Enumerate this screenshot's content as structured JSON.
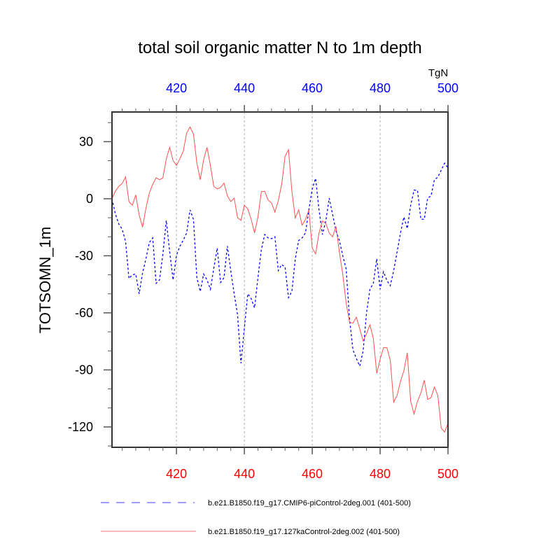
{
  "chart_data": {
    "type": "line",
    "title": "total soil organic matter N to 1m depth",
    "units_label": "TgN",
    "xlabel": "",
    "ylabel": "TOTSOMN_1m",
    "xlim": [
      401,
      500
    ],
    "ylim": [
      -130.7,
      45.6
    ],
    "x_ticks_major": [
      420,
      440,
      460,
      480,
      500
    ],
    "x_tick_labels_top": [
      "420",
      "440",
      "460",
      "480",
      "500"
    ],
    "x_tick_labels_bottom": [
      "420",
      "440",
      "460",
      "480",
      "500"
    ],
    "x_ticks_minor_step": 4,
    "y_ticks_major": [
      30,
      0,
      -30,
      -60,
      -90,
      -120
    ],
    "y_tick_labels": [
      "30",
      "0",
      "-30",
      "-60",
      "-90",
      "-120"
    ],
    "y_ticks_minor_step": 10,
    "vertical_gridlines": [
      420,
      440,
      460,
      480
    ],
    "grid": "vertical dashed at major x ticks",
    "legend_placement": "bottom",
    "x_start": 401,
    "x_step": 1,
    "series": [
      {
        "name": "b.e21.B1850.f19_g17.CMIP6-piControl-2deg.001 (401-500)",
        "color": "#0000ff",
        "style": "dashed",
        "values": [
          0,
          -8,
          -13.3,
          -16,
          -22.5,
          -42,
          -40,
          -39.6,
          -50,
          -39,
          -31.6,
          -23,
          -20.6,
          -44.5,
          -42.7,
          -29,
          -11.4,
          -28,
          -42.7,
          -29.8,
          -25,
          -21.8,
          -18,
          -5.9,
          -10.8,
          -41.5,
          -48.8,
          -39.6,
          -42.7,
          -47.6,
          -36.5,
          -26,
          -44,
          -41.5,
          -24.9,
          -38,
          -50,
          -61,
          -86.5,
          -68,
          -50,
          -52.5,
          -57.4,
          -41.5,
          -26.8,
          -18.8,
          -20.6,
          -21,
          -20,
          -37.8,
          -34.6,
          -36,
          -52,
          -48.8,
          -31.6,
          -22,
          -20.6,
          -18,
          -5.9,
          5.2,
          10.7,
          -5.9,
          -18.8,
          -11.7,
          0.3,
          -8.3,
          -17,
          -22,
          -30,
          -37,
          -63.5,
          -79.5,
          -84,
          -88,
          -80,
          -60,
          -47.6,
          -44.5,
          -31.6,
          -47.6,
          -38.4,
          -43,
          -45.7,
          -37.8,
          -28,
          -18,
          -9.6,
          -15.7,
          -3.4,
          4.5,
          4.5,
          -10.8,
          -10.8,
          0.3,
          1.5,
          10,
          11.3,
          15,
          18.7,
          16.2
        ]
      },
      {
        "name": "b.e21.B1850.f19_g17.127kaControl-2deg.002 (401-500)",
        "color": "#ff0000",
        "style": "solid",
        "values": [
          0,
          4,
          6.5,
          8,
          11.5,
          -1.5,
          -3.4,
          2,
          -8.5,
          -15,
          -5,
          3,
          7.6,
          11,
          10,
          11,
          21,
          27,
          20,
          17.5,
          21,
          25,
          34.6,
          37.7,
          34,
          18.8,
          10,
          20.6,
          27,
          17.4,
          6.4,
          5.2,
          5.9,
          8.2,
          1.5,
          -1.5,
          0.3,
          -10,
          -11.4,
          -3.4,
          -5.3,
          -10.8,
          -18,
          -9.6,
          3.7,
          3.9,
          -0.7,
          -2.2,
          -7,
          -1,
          7.6,
          22.3,
          25.8,
          3.9,
          -10.2,
          -5.9,
          -13.9,
          -11,
          -5.9,
          -26,
          -29,
          -18,
          -11.7,
          -13,
          -18,
          -20,
          -14.5,
          -28,
          -40,
          -55,
          -65,
          -65.4,
          -62.3,
          -68.5,
          -74.8,
          -71,
          -66.3,
          -73.4,
          -91.8,
          -84.4,
          -78.3,
          -78.3,
          -85,
          -107,
          -103.4,
          -96,
          -90.5,
          -81,
          -106.5,
          -113.2,
          -106.5,
          -102.2,
          -95.4,
          -105.5,
          -104.6,
          -99,
          -103.4,
          -120.6,
          -122.7,
          -118
        ]
      }
    ]
  }
}
